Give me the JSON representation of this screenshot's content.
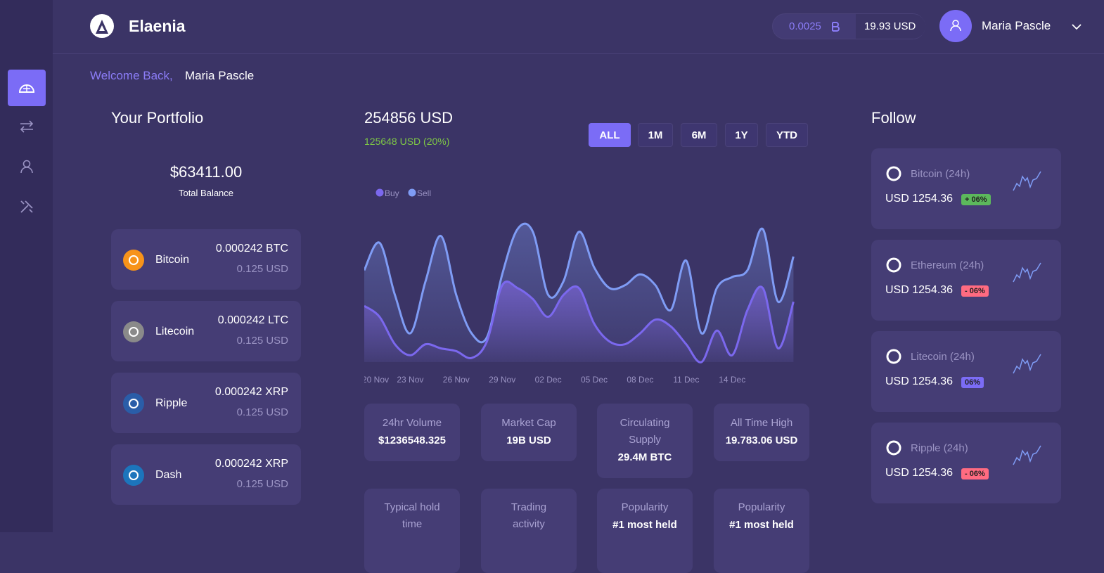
{
  "header": {
    "brand": "Elaenia",
    "btc_amount": "0.0025",
    "usd_amount": "19.93 USD",
    "user": "Maria Pascle"
  },
  "welcome": {
    "greeting": "Welcome Back,",
    "name": "Maria Pascle"
  },
  "portfolio": {
    "title": "Your Portfolio",
    "balance": "$63411.00",
    "balance_label": "Total Balance",
    "coins": [
      {
        "name": "Bitcoin",
        "amount": "0.000242 BTC",
        "usd": "0.125 USD",
        "color": "#f7931a"
      },
      {
        "name": "Litecoin",
        "amount": "0.000242 LTC",
        "usd": "0.125 USD",
        "color": "#8a8a8a"
      },
      {
        "name": "Ripple",
        "amount": "0.000242 XRP",
        "usd": "0.125 USD",
        "color": "#2a5da8"
      },
      {
        "name": "Dash",
        "amount": "0.000242 XRP",
        "usd": "0.125 USD",
        "color": "#1c75bc"
      }
    ]
  },
  "market": {
    "total": "254856 USD",
    "change": "125648 USD (20%)",
    "ranges": [
      "ALL",
      "1M",
      "6M",
      "1Y",
      "YTD"
    ],
    "active_range": 0,
    "chart": {
      "type": "area",
      "categories": [
        "20 Nov",
        null,
        null,
        "23 Nov",
        null,
        null,
        "26 Nov",
        null,
        null,
        "29 Nov",
        null,
        null,
        "02 Dec",
        null,
        null,
        "05 Dec",
        null,
        null,
        "08 Dec",
        null,
        null,
        "11 Dec",
        null,
        null,
        "14 Dec",
        null,
        null,
        null,
        null
      ],
      "ylim": [
        0,
        100
      ],
      "series": [
        {
          "name": "Buy",
          "color": "#7b68ee",
          "values": [
            41,
            33,
            13,
            5,
            13,
            10,
            8,
            3,
            15,
            56,
            54,
            46,
            33,
            49,
            54,
            28,
            15,
            13,
            21,
            31,
            26,
            13,
            0,
            23,
            5,
            38,
            54,
            10,
            44
          ]
        },
        {
          "name": "Sell",
          "color": "#7f9cf5",
          "values": [
            67,
            87,
            49,
            21,
            59,
            92,
            49,
            21,
            18,
            64,
            97,
            95,
            49,
            59,
            95,
            69,
            54,
            56,
            64,
            56,
            38,
            74,
            21,
            54,
            62,
            67,
            97,
            44,
            77
          ]
        }
      ]
    },
    "stats": [
      {
        "label": "24hr Volume",
        "value": "$1236548.325"
      },
      {
        "label": "Market Cap",
        "value": "19B USD"
      },
      {
        "label": "Circulating Supply",
        "value": "29.4M BTC"
      },
      {
        "label": "All Time High",
        "value": "19.783.06 USD"
      },
      {
        "label": "Typical hold time"
      },
      {
        "label": "Trading activity"
      },
      {
        "label": "Popularity",
        "value": "#1 most held"
      },
      {
        "label": "Popularity",
        "value": "#1 most held"
      }
    ]
  },
  "follow": {
    "title": "Follow",
    "items": [
      {
        "name": "Bitcoin (24h)",
        "price": "USD 1254.36",
        "change": "+ 06%",
        "color": "#5cb85c"
      },
      {
        "name": "Ethereum (24h)",
        "price": "USD 1254.36",
        "change": "- 06%",
        "color": "#ff6b81"
      },
      {
        "name": "Litecoin (24h)",
        "price": "USD 1254.36",
        "change": "06%",
        "color": "#7b6cf6"
      },
      {
        "name": "Ripple (24h)",
        "price": "USD 1254.36",
        "change": "- 06%",
        "color": "#ff6b81"
      }
    ]
  }
}
